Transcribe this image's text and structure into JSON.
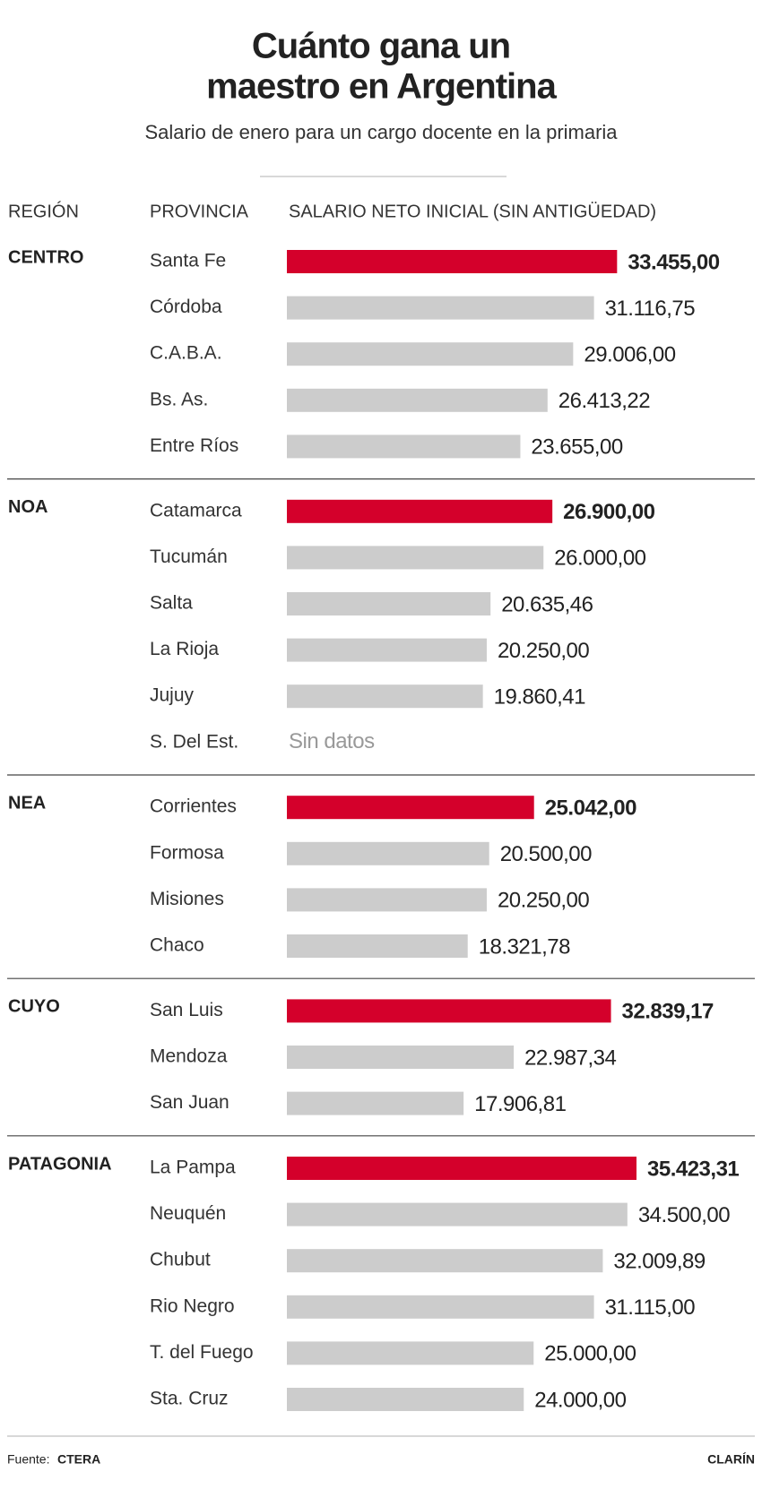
{
  "chart_data": {
    "type": "bar",
    "title": [
      "Cuánto gana un",
      "maestro en Argentina"
    ],
    "subtitle": "Salario de enero para un cargo docente en la primaria",
    "headers": [
      "REGIÓN",
      "PROVINCIA",
      "SALARIO NETO INICIAL (SIN ANTIGÜEDAD)"
    ],
    "groups": [
      {
        "name": "CENTRO",
        "categories": [
          "Santa Fe",
          "Córdoba",
          "C.A.B.A.",
          "Bs. As.",
          "Entre Ríos"
        ],
        "values": [
          33455.0,
          31116.75,
          29006.0,
          26413.22,
          23655.0
        ],
        "value_labels": [
          "33.455,00",
          "31.116,75",
          "29.006,00",
          "26.413,22",
          "23.655,00"
        ],
        "colors": [
          "#d4002b",
          "#cccccc",
          "#cccccc",
          "#cccccc",
          "#cccccc"
        ]
      },
      {
        "name": "NOA",
        "categories": [
          "Catamarca",
          "Tucumán",
          "Salta",
          "La Rioja",
          "Jujuy",
          "S. Del Est."
        ],
        "values": [
          26900.0,
          26000.0,
          20635.46,
          20250.0,
          19860.41,
          null
        ],
        "value_labels": [
          "26.900,00",
          "26.000,00",
          "20.635,46",
          "20.250,00",
          "19.860,41",
          "Sin datos"
        ],
        "colors": [
          "#d4002b",
          "#cccccc",
          "#cccccc",
          "#cccccc",
          "#cccccc",
          "#cccccc"
        ]
      },
      {
        "name": "NEA",
        "categories": [
          "Corrientes",
          "Formosa",
          "Misiones",
          "Chaco"
        ],
        "values": [
          25042.0,
          20500.0,
          20250.0,
          18321.78
        ],
        "value_labels": [
          "25.042,00",
          "20.500,00",
          "20.250,00",
          "18.321,78"
        ],
        "colors": [
          "#d4002b",
          "#cccccc",
          "#cccccc",
          "#cccccc"
        ]
      },
      {
        "name": "CUYO",
        "categories": [
          "San Luis",
          "Mendoza",
          "San Juan"
        ],
        "values": [
          32839.17,
          22987.34,
          17906.81
        ],
        "value_labels": [
          "32.839,17",
          "22.987,34",
          "17.906,81"
        ],
        "colors": [
          "#d4002b",
          "#cccccc",
          "#cccccc"
        ]
      },
      {
        "name": "PATAGONIA",
        "categories": [
          "La Pampa",
          "Neuquén",
          "Chubut",
          "Rio Negro",
          "T. del Fuego",
          "Sta. Cruz"
        ],
        "values": [
          35423.31,
          34500.0,
          32009.89,
          31115.0,
          25000.0,
          24000.0
        ],
        "value_labels": [
          "35.423,31",
          "34.500,00",
          "32.009,89",
          "31.115,00",
          "25.000,00",
          "24.000,00"
        ],
        "colors": [
          "#d4002b",
          "#cccccc",
          "#cccccc",
          "#cccccc",
          "#cccccc",
          "#cccccc"
        ]
      }
    ],
    "source_label": "Fuente:",
    "source": "CTERA",
    "brand": "CLARÍN"
  }
}
